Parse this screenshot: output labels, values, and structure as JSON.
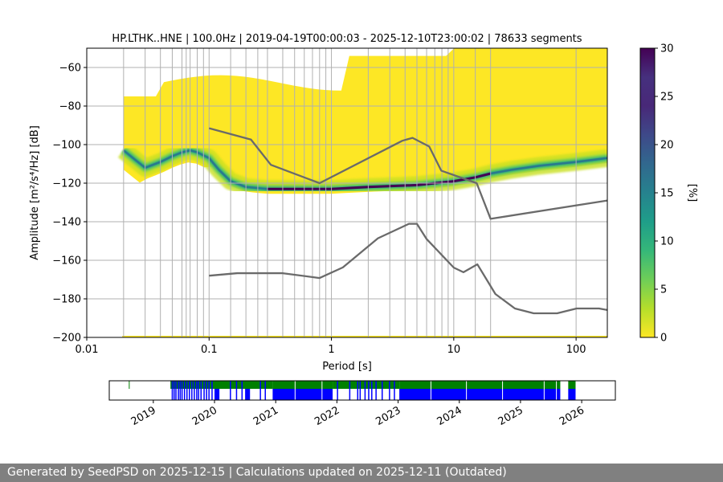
{
  "chart_data": [
    {
      "type": "heatmap",
      "title": "HP.LTHK..HNE | 100.0Hz | 2019-04-19T00:00:03 - 2025-12-10T23:00:02 | 78633 segments",
      "xlabel": "Period [s]",
      "ylabel": "Amplitude [m²/s⁴/Hz] [dB]",
      "xscale": "log",
      "xlim": [
        0.01,
        180
      ],
      "ylim": [
        -200,
        -50
      ],
      "xticks": [
        {
          "value": 0.01,
          "label": "0.01"
        },
        {
          "value": 0.1,
          "label": "0.1"
        },
        {
          "value": 1,
          "label": "1"
        },
        {
          "value": 10,
          "label": "10"
        },
        {
          "value": 100,
          "label": "100"
        }
      ],
      "yticks": [
        -60,
        -80,
        -100,
        -120,
        -140,
        -160,
        -180,
        -200
      ],
      "period_gridlines": [
        0.02,
        0.03,
        0.04,
        0.05,
        0.06,
        0.065,
        0.07,
        0.08,
        0.09,
        0.1,
        0.15,
        0.2,
        0.25,
        0.3,
        0.4,
        0.5,
        0.6,
        0.7,
        0.8,
        0.9,
        1,
        2,
        3,
        4,
        5,
        6,
        7,
        8,
        9,
        10,
        15,
        20,
        100
      ],
      "colorbar": {
        "label": "[%]",
        "min": 0,
        "max": 30,
        "ticks": [
          0,
          5,
          10,
          15,
          20,
          25,
          30
        ],
        "colormap": "viridis_r"
      },
      "psd_mode": {
        "name": "mode",
        "x": [
          0.02,
          0.025,
          0.03,
          0.04,
          0.05,
          0.06,
          0.07,
          0.08,
          0.1,
          0.12,
          0.15,
          0.2,
          0.3,
          0.5,
          1,
          2,
          5,
          10,
          15,
          20,
          30,
          50,
          100,
          180
        ],
        "y": [
          -103,
          -108,
          -112,
          -109,
          -106,
          -104,
          -103,
          -104,
          -107,
          -113,
          -119,
          -122,
          -123,
          -123,
          -123,
          -122,
          -121,
          -119,
          -117,
          -115,
          -113,
          -111,
          -109,
          -107
        ]
      },
      "series": [
        {
          "name": "NHNM",
          "color": "#6a6a6a",
          "x": [
            0.1,
            0.22,
            0.32,
            0.8,
            3.8,
            4.6,
            6.3,
            7.9,
            15.4,
            20,
            180
          ],
          "y": [
            -91.5,
            -97.4,
            -110.5,
            -120,
            -98,
            -96.5,
            -101,
            -113.5,
            -120,
            -138.5,
            -129
          ]
        },
        {
          "name": "NLNM",
          "color": "#6a6a6a",
          "x": [
            0.1,
            0.17,
            0.4,
            0.8,
            1.24,
            2.4,
            4.3,
            5,
            6,
            10,
            12,
            15.6,
            21.9,
            31.6,
            45,
            70,
            101,
            154,
            180
          ],
          "y": [
            -168,
            -166.7,
            -166.7,
            -169.2,
            -163.7,
            -148.6,
            -141.1,
            -141.1,
            -149,
            -163.8,
            -166.2,
            -162.1,
            -177.5,
            -185,
            -187.5,
            -187.5,
            -185,
            -185,
            -185.8
          ]
        }
      ]
    },
    {
      "type": "timeline",
      "xlim": [
        2018.28,
        2026.55
      ],
      "xticks": [
        "2019",
        "2020",
        "2021",
        "2022",
        "2023",
        "2024",
        "2025",
        "2026"
      ],
      "colors": {
        "blue": "#0000ff",
        "green": "#008000"
      },
      "segments": [
        {
          "track": "full",
          "start": 2020.95,
          "end": 2021.93
        },
        {
          "track": "full",
          "start": 2023.02,
          "end": 2025.65
        },
        {
          "track": "full",
          "start": 2025.78,
          "end": 2025.9
        },
        {
          "track": "green",
          "start": 2019.28,
          "end": 2020.95
        },
        {
          "track": "green",
          "start": 2021.93,
          "end": 2023.02
        },
        {
          "track": "blue",
          "start": 2020.0,
          "end": 2020.08
        },
        {
          "track": "blue",
          "start": 2020.5,
          "end": 2020.58
        }
      ],
      "ticks_blue": [
        2019.3,
        2019.33,
        2019.36,
        2019.4,
        2019.43,
        2019.46,
        2019.5,
        2019.54,
        2019.58,
        2019.62,
        2019.66,
        2019.7,
        2019.73,
        2019.77,
        2019.82,
        2019.86,
        2019.9,
        2019.95,
        2020.25,
        2020.35,
        2020.44,
        2020.74,
        2020.82,
        2022.0,
        2022.2,
        2022.33,
        2022.37,
        2022.45,
        2022.51,
        2022.56,
        2022.63,
        2022.73,
        2022.85,
        2022.93
      ],
      "ticks_green": [
        2018.6
      ],
      "ticks_white": [
        2021.31,
        2021.75,
        2023.53,
        2024.11,
        2024.7,
        2025.38,
        2025.58
      ]
    }
  ],
  "footer": {
    "text": "Generated by SeedPSD on 2025-12-15 | Calculations updated on 2025-12-11 (Outdated)"
  }
}
